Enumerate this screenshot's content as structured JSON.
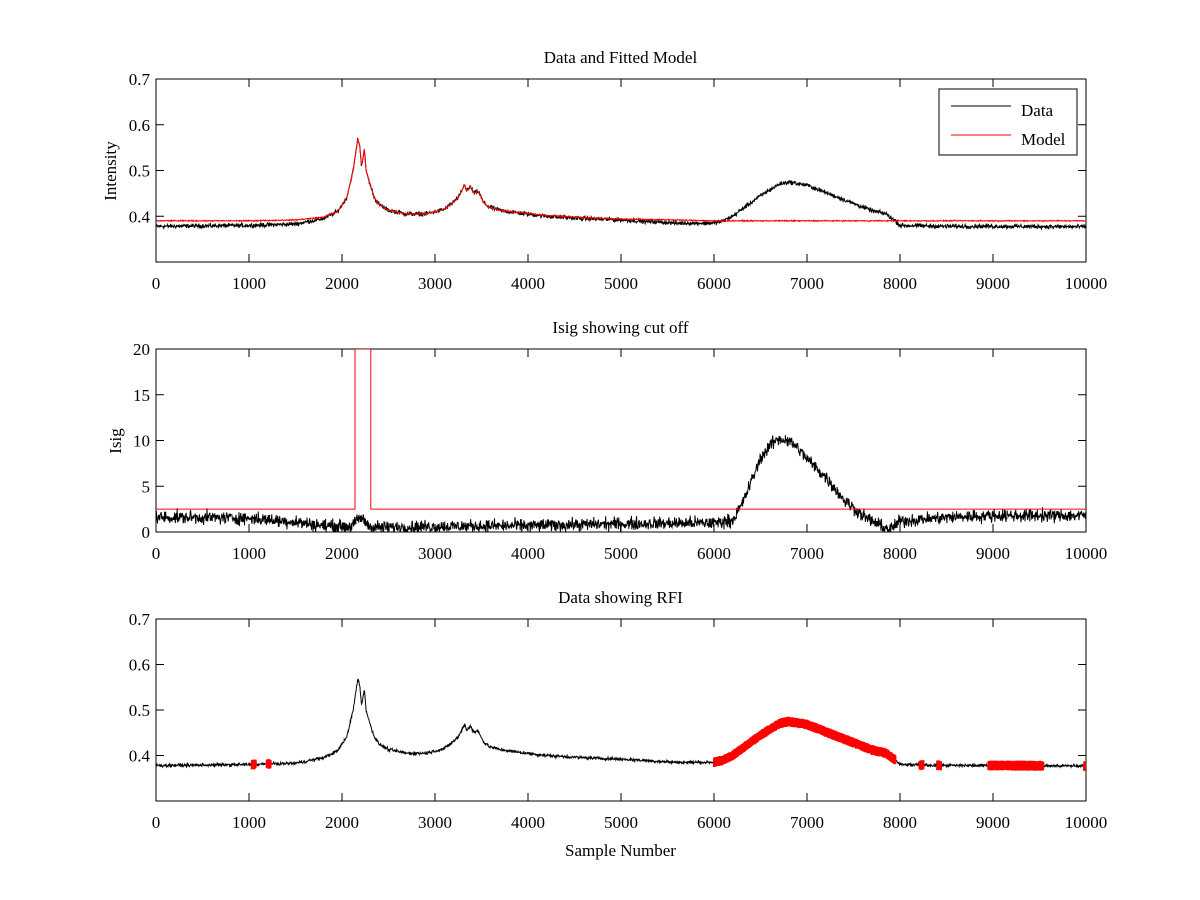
{
  "colors": {
    "data": "#000000",
    "model": "#ff0000",
    "rfi": "#ff0000",
    "cutoff": "#ff0000"
  },
  "chart_data": [
    {
      "id": "top",
      "type": "line",
      "title": "Data and Fitted Model",
      "xlabel": "",
      "ylabel": "Intensity",
      "xlim": [
        0,
        10000
      ],
      "ylim": [
        0.3,
        0.7
      ],
      "xticks": [
        0,
        1000,
        2000,
        3000,
        4000,
        5000,
        6000,
        7000,
        8000,
        9000,
        10000
      ],
      "yticks": [
        0.4,
        0.5,
        0.6,
        0.7
      ],
      "legend": {
        "position": "top-right",
        "entries": [
          "Data",
          "Model"
        ]
      },
      "series": [
        {
          "name": "Data",
          "color": "#000000",
          "noise": 0.004,
          "x": [
            0,
            1000,
            1500,
            1800,
            1950,
            2050,
            2120,
            2170,
            2190,
            2210,
            2240,
            2260,
            2300,
            2350,
            2400,
            2500,
            2700,
            2900,
            3100,
            3250,
            3320,
            3340,
            3380,
            3420,
            3460,
            3490,
            3520,
            3580,
            3700,
            3900,
            4200,
            4600,
            5000,
            5600,
            6000,
            6100,
            6200,
            6300,
            6500,
            6700,
            6800,
            7000,
            7200,
            7500,
            7700,
            7850,
            7950,
            8000,
            8500,
            9000,
            10000
          ],
          "y": [
            0.378,
            0.38,
            0.383,
            0.395,
            0.41,
            0.44,
            0.5,
            0.57,
            0.555,
            0.51,
            0.545,
            0.5,
            0.47,
            0.44,
            0.425,
            0.413,
            0.405,
            0.405,
            0.415,
            0.44,
            0.47,
            0.455,
            0.465,
            0.45,
            0.455,
            0.445,
            0.43,
            0.42,
            0.413,
            0.407,
            0.4,
            0.395,
            0.392,
            0.385,
            0.385,
            0.39,
            0.4,
            0.415,
            0.445,
            0.47,
            0.475,
            0.468,
            0.452,
            0.428,
            0.412,
            0.405,
            0.39,
            0.38,
            0.378,
            0.378,
            0.377
          ]
        },
        {
          "name": "Model",
          "color": "#ff0000",
          "noise": 0.001,
          "x": [
            0,
            1000,
            1500,
            1800,
            1950,
            2050,
            2120,
            2170,
            2190,
            2210,
            2240,
            2260,
            2300,
            2350,
            2400,
            2500,
            2700,
            2900,
            3100,
            3250,
            3320,
            3340,
            3380,
            3420,
            3460,
            3490,
            3520,
            3580,
            3700,
            3900,
            4200,
            4600,
            5000,
            5600,
            6000,
            7000,
            8000,
            9000,
            10000
          ],
          "y": [
            0.39,
            0.39,
            0.392,
            0.398,
            0.41,
            0.44,
            0.5,
            0.57,
            0.555,
            0.51,
            0.545,
            0.5,
            0.47,
            0.44,
            0.425,
            0.413,
            0.405,
            0.405,
            0.415,
            0.44,
            0.47,
            0.455,
            0.465,
            0.45,
            0.455,
            0.445,
            0.43,
            0.42,
            0.413,
            0.408,
            0.402,
            0.397,
            0.394,
            0.392,
            0.39,
            0.39,
            0.39,
            0.39,
            0.39
          ]
        }
      ]
    },
    {
      "id": "middle",
      "type": "line",
      "title": "Isig showing cut off",
      "xlabel": "",
      "ylabel": "Isig",
      "xlim": [
        0,
        10000
      ],
      "ylim": [
        0,
        20
      ],
      "xticks": [
        0,
        1000,
        2000,
        3000,
        4000,
        5000,
        6000,
        7000,
        8000,
        9000,
        10000
      ],
      "yticks": [
        0,
        5,
        10,
        15,
        20
      ],
      "series": [
        {
          "name": "Isig",
          "color": "#000000",
          "noise": 0.6,
          "x": [
            0,
            500,
            1000,
            1500,
            1800,
            2100,
            2200,
            2300,
            2400,
            3000,
            4000,
            5000,
            6000,
            6200,
            6300,
            6400,
            6500,
            6600,
            6700,
            6800,
            6900,
            7000,
            7200,
            7400,
            7600,
            7800,
            7900,
            8000,
            8500,
            9000,
            10000
          ],
          "y": [
            1.6,
            1.6,
            1.5,
            1.1,
            0.7,
            0.6,
            1.6,
            0.6,
            0.5,
            0.6,
            0.7,
            0.9,
            1.0,
            1.3,
            3.0,
            5.5,
            8.0,
            9.5,
            10.2,
            10.0,
            9.2,
            8.0,
            6.0,
            3.5,
            1.8,
            0.6,
            0.3,
            1.2,
            1.6,
            1.8,
            1.8
          ]
        },
        {
          "name": "Cut off",
          "color": "#ff0000",
          "noise": 0,
          "x": [
            0,
            2140,
            2140,
            2310,
            2310,
            10000
          ],
          "y": [
            2.5,
            2.5,
            20,
            20,
            2.5,
            2.5
          ]
        }
      ]
    },
    {
      "id": "bottom",
      "type": "line",
      "title": "Data showing RFI",
      "xlabel": "Sample Number",
      "ylabel": "",
      "xlim": [
        0,
        10000
      ],
      "ylim": [
        0.3,
        0.7
      ],
      "xticks": [
        0,
        1000,
        2000,
        3000,
        4000,
        5000,
        6000,
        7000,
        8000,
        9000,
        10000
      ],
      "yticks": [
        0.4,
        0.5,
        0.6,
        0.7
      ],
      "series": [
        {
          "name": "Data",
          "color": "#000000",
          "noise": 0.003,
          "x": [
            0,
            1000,
            1500,
            1800,
            1950,
            2050,
            2120,
            2170,
            2190,
            2210,
            2240,
            2260,
            2300,
            2350,
            2400,
            2500,
            2700,
            2900,
            3100,
            3250,
            3320,
            3340,
            3380,
            3420,
            3460,
            3490,
            3520,
            3580,
            3700,
            3900,
            4200,
            4600,
            5000,
            5600,
            6000,
            6100,
            6200,
            6300,
            6500,
            6700,
            6800,
            7000,
            7200,
            7500,
            7700,
            7850,
            7950,
            8000,
            8500,
            9000,
            10000
          ],
          "y": [
            0.378,
            0.38,
            0.383,
            0.395,
            0.41,
            0.44,
            0.5,
            0.57,
            0.555,
            0.51,
            0.545,
            0.5,
            0.47,
            0.44,
            0.425,
            0.413,
            0.405,
            0.405,
            0.415,
            0.44,
            0.47,
            0.455,
            0.465,
            0.45,
            0.455,
            0.445,
            0.43,
            0.42,
            0.413,
            0.407,
            0.4,
            0.395,
            0.392,
            0.385,
            0.385,
            0.39,
            0.4,
            0.415,
            0.445,
            0.47,
            0.475,
            0.468,
            0.452,
            0.428,
            0.412,
            0.405,
            0.39,
            0.38,
            0.378,
            0.378,
            0.377
          ]
        }
      ],
      "rfi": {
        "color": "#ff0000",
        "ranges": [
          [
            1030,
            1070
          ],
          [
            1190,
            1230
          ],
          [
            6000,
            7950
          ],
          [
            8210,
            8250
          ],
          [
            8400,
            8440
          ],
          [
            8950,
            9540
          ],
          [
            9980,
            10000
          ]
        ]
      }
    }
  ]
}
